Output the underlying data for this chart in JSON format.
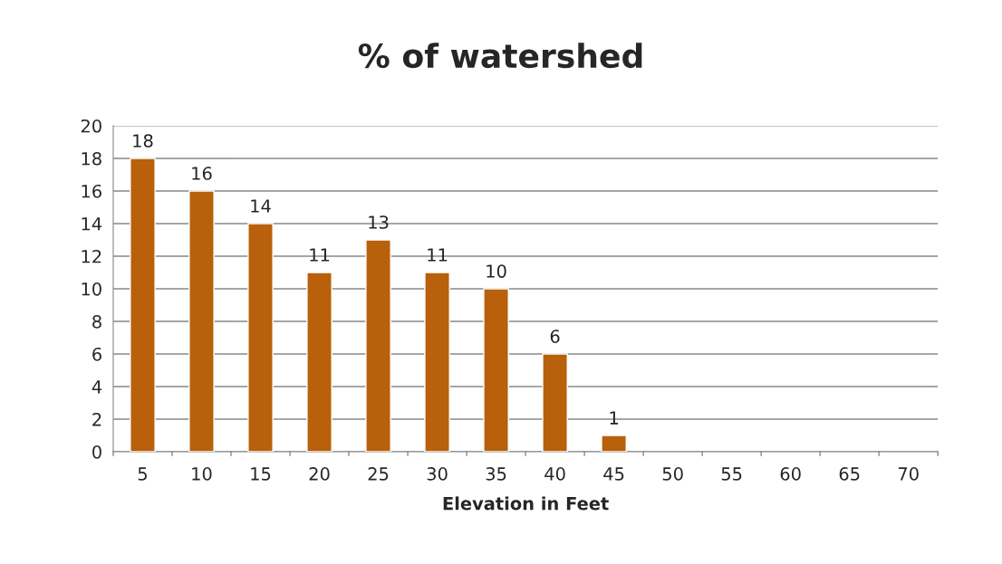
{
  "chart_data": {
    "type": "bar",
    "title": "% of watershed",
    "xlabel": "Elevation in Feet",
    "categories": [
      "5",
      "10",
      "15",
      "20",
      "25",
      "30",
      "35",
      "40",
      "45",
      "50",
      "55",
      "60",
      "65",
      "70"
    ],
    "values": [
      18,
      16,
      14,
      11,
      13,
      11,
      10,
      6,
      1,
      null,
      null,
      null,
      null,
      null
    ],
    "color": "#b8600b",
    "ylim": [
      0,
      20
    ],
    "yticks": [
      0,
      2,
      4,
      6,
      8,
      10,
      12,
      14,
      16,
      18,
      20
    ],
    "grid": "y",
    "data_labels": true
  }
}
